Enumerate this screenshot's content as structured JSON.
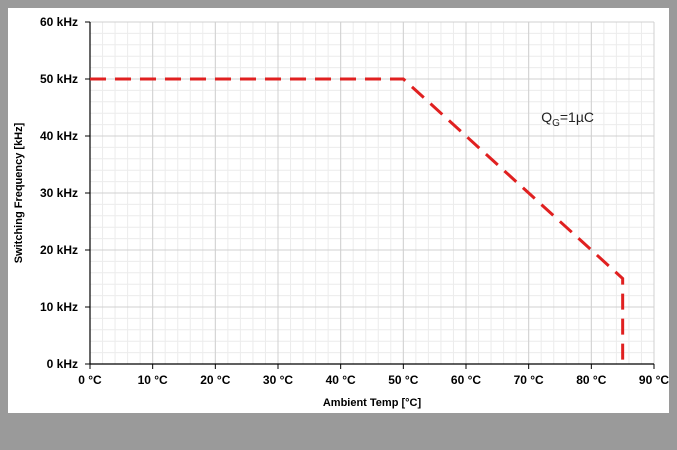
{
  "chart_data": {
    "type": "line",
    "title": "",
    "xlabel": "Ambient Temp [°C]",
    "ylabel": "Switching Frequency [kHz]",
    "xlim": [
      0,
      90
    ],
    "ylim": [
      0,
      60
    ],
    "x_ticks": [
      0,
      10,
      20,
      30,
      40,
      50,
      60,
      70,
      80,
      90
    ],
    "x_tick_labels": [
      "0 °C",
      "10 °C",
      "20 °C",
      "30 °C",
      "40 °C",
      "50 °C",
      "60 °C",
      "70 °C",
      "80 °C",
      "90 °C"
    ],
    "y_ticks": [
      0,
      10,
      20,
      30,
      40,
      50,
      60
    ],
    "y_tick_labels": [
      "0 kHz",
      "10 kHz",
      "20 kHz",
      "30 kHz",
      "40 kHz",
      "50 kHz",
      "60 kHz"
    ],
    "grid": true,
    "series": [
      {
        "color": "#e02020",
        "dash": "dashed",
        "x": [
          0,
          50,
          85,
          85
        ],
        "y": [
          50,
          50,
          15,
          0
        ]
      }
    ],
    "annotations": [
      {
        "main": "Q",
        "subscript": "G",
        "suffix": "=1µC",
        "x": 72,
        "y": 42.5
      }
    ]
  }
}
